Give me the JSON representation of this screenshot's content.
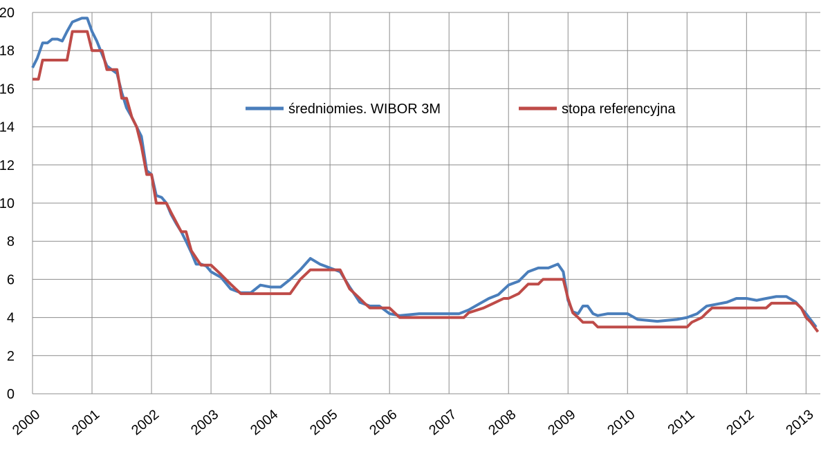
{
  "chart_data": {
    "type": "line",
    "categories": [
      "2000",
      "2001",
      "2002",
      "2003",
      "2004",
      "2005",
      "2006",
      "2007",
      "2008",
      "2009",
      "2010",
      "2011",
      "2012",
      "2013"
    ],
    "xticks": [
      2000,
      2001,
      2002,
      2003,
      2004,
      2005,
      2006,
      2007,
      2008,
      2009,
      2010,
      2011,
      2012,
      2013
    ],
    "xlim": [
      2000,
      2013.24
    ],
    "ylim": [
      0,
      20
    ],
    "yticks": [
      0,
      2,
      4,
      6,
      8,
      10,
      12,
      14,
      16,
      18,
      20
    ],
    "grid": true,
    "legend": "top",
    "series": [
      {
        "name": "średniomies. WIBOR 3M",
        "color": "#4a7ebb",
        "x": [
          2000.0,
          2000.08,
          2000.17,
          2000.25,
          2000.33,
          2000.42,
          2000.5,
          2000.58,
          2000.67,
          2000.75,
          2000.83,
          2000.92,
          2001.0,
          2001.08,
          2001.17,
          2001.25,
          2001.33,
          2001.42,
          2001.5,
          2001.58,
          2001.67,
          2001.75,
          2001.83,
          2001.92,
          2002.0,
          2002.08,
          2002.17,
          2002.25,
          2002.33,
          2002.42,
          2002.5,
          2002.58,
          2002.67,
          2002.75,
          2002.83,
          2002.92,
          2003.0,
          2003.17,
          2003.33,
          2003.5,
          2003.67,
          2003.83,
          2004.0,
          2004.17,
          2004.33,
          2004.5,
          2004.67,
          2004.83,
          2005.0,
          2005.17,
          2005.33,
          2005.5,
          2005.67,
          2005.83,
          2006.0,
          2006.17,
          2006.5,
          2006.83,
          2007.0,
          2007.17,
          2007.33,
          2007.5,
          2007.67,
          2007.83,
          2008.0,
          2008.17,
          2008.33,
          2008.5,
          2008.67,
          2008.83,
          2008.92,
          2009.0,
          2009.08,
          2009.17,
          2009.25,
          2009.33,
          2009.42,
          2009.5,
          2009.67,
          2010.0,
          2010.17,
          2010.5,
          2010.83,
          2011.0,
          2011.17,
          2011.33,
          2011.5,
          2011.67,
          2011.83,
          2012.0,
          2012.17,
          2012.33,
          2012.5,
          2012.67,
          2012.83,
          2013.0,
          2013.17
        ],
        "values": [
          17.1,
          17.6,
          18.4,
          18.4,
          18.6,
          18.6,
          18.5,
          19.0,
          19.5,
          19.6,
          19.7,
          19.7,
          19.0,
          18.5,
          17.8,
          17.2,
          17.0,
          16.8,
          15.8,
          15.0,
          14.5,
          14.0,
          13.5,
          11.7,
          11.5,
          10.4,
          10.3,
          10.0,
          9.4,
          8.9,
          8.5,
          8.0,
          7.4,
          6.8,
          6.8,
          6.7,
          6.4,
          6.1,
          5.5,
          5.3,
          5.3,
          5.7,
          5.6,
          5.6,
          6.0,
          6.5,
          7.1,
          6.8,
          6.6,
          6.4,
          5.6,
          4.8,
          4.6,
          4.6,
          4.2,
          4.1,
          4.2,
          4.2,
          4.2,
          4.2,
          4.4,
          4.7,
          5.0,
          5.2,
          5.7,
          5.9,
          6.4,
          6.6,
          6.6,
          6.8,
          6.4,
          4.9,
          4.3,
          4.2,
          4.6,
          4.6,
          4.2,
          4.1,
          4.2,
          4.2,
          3.9,
          3.8,
          3.9,
          4.0,
          4.2,
          4.6,
          4.7,
          4.8,
          5.0,
          5.0,
          4.9,
          5.0,
          5.1,
          5.1,
          4.8,
          4.2,
          3.5
        ]
      },
      {
        "name": "stopa referencyjna",
        "color": "#be4b48",
        "x": [
          2000.0,
          2000.1,
          2000.17,
          2000.58,
          2000.67,
          2000.92,
          2001.0,
          2001.17,
          2001.25,
          2001.42,
          2001.5,
          2001.58,
          2001.67,
          2001.75,
          2001.83,
          2001.92,
          2002.0,
          2002.08,
          2002.25,
          2002.33,
          2002.5,
          2002.58,
          2002.67,
          2002.83,
          2003.0,
          2003.17,
          2003.33,
          2003.5,
          2003.67,
          2004.33,
          2004.5,
          2004.67,
          2005.17,
          2005.33,
          2005.5,
          2005.58,
          2005.67,
          2006.0,
          2006.17,
          2007.25,
          2007.33,
          2007.58,
          2007.75,
          2007.92,
          2008.0,
          2008.17,
          2008.25,
          2008.33,
          2008.5,
          2008.58,
          2008.92,
          2009.0,
          2009.08,
          2009.17,
          2009.25,
          2009.42,
          2009.5,
          2011.0,
          2011.08,
          2011.25,
          2011.33,
          2011.42,
          2012.33,
          2012.42,
          2012.83,
          2012.92,
          2013.0,
          2013.08,
          2013.2
        ],
        "values": [
          16.5,
          16.5,
          17.5,
          17.5,
          19,
          19,
          18,
          18,
          17,
          17,
          15.5,
          15.5,
          14.5,
          14,
          13,
          11.5,
          11.5,
          10,
          10,
          9.5,
          8.5,
          8.5,
          7.5,
          6.75,
          6.75,
          6.25,
          5.75,
          5.25,
          5.25,
          5.25,
          6.0,
          6.5,
          6.5,
          5.5,
          5.0,
          4.75,
          4.5,
          4.5,
          4.0,
          4.0,
          4.25,
          4.5,
          4.75,
          5.0,
          5.0,
          5.25,
          5.5,
          5.75,
          5.75,
          6.0,
          6.0,
          5.0,
          4.25,
          4.0,
          3.75,
          3.75,
          3.5,
          3.5,
          3.75,
          4.0,
          4.25,
          4.5,
          4.5,
          4.75,
          4.75,
          4.5,
          4.0,
          3.75,
          3.25
        ]
      }
    ]
  }
}
